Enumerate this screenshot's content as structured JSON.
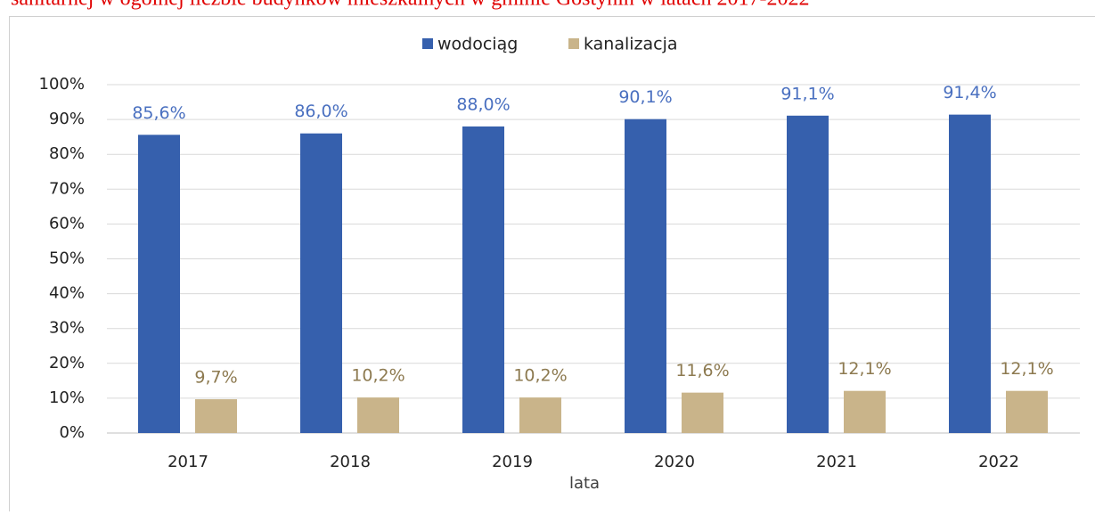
{
  "chart_data": {
    "type": "bar",
    "title": "sanitarnej w ogólnej liczbie budynków mieszkalnych w gminie Gostynin w latach 2017-2022",
    "xlabel": "lata",
    "categories": [
      "2017",
      "2018",
      "2019",
      "2020",
      "2021",
      "2022"
    ],
    "series": [
      {
        "name": "wodociąg",
        "color": "#3660ad",
        "values": [
          85.6,
          86.0,
          88.0,
          90.1,
          91.1,
          91.4
        ],
        "value_labels": [
          "85,6%",
          "86,0%",
          "88,0%",
          "90,1%",
          "91,1%",
          "91,4%"
        ]
      },
      {
        "name": "kanalizacja",
        "color": "#c9b48a",
        "values": [
          9.7,
          10.2,
          10.2,
          11.6,
          12.1,
          12.1
        ],
        "value_labels": [
          "9,7%",
          "10,2%",
          "10,2%",
          "11,6%",
          "12,1%",
          "12,1%"
        ]
      }
    ],
    "ylim": [
      0,
      100
    ],
    "yticks": [
      {
        "value": 0,
        "label": "0%"
      },
      {
        "value": 10,
        "label": "10%"
      },
      {
        "value": 20,
        "label": "20%"
      },
      {
        "value": 30,
        "label": "30%"
      },
      {
        "value": 40,
        "label": "40%"
      },
      {
        "value": 50,
        "label": "50%"
      },
      {
        "value": 60,
        "label": "60%"
      },
      {
        "value": 70,
        "label": "70%"
      },
      {
        "value": 80,
        "label": "80%"
      },
      {
        "value": 90,
        "label": "90%"
      },
      {
        "value": 100,
        "label": "100%"
      }
    ],
    "grid": true,
    "legend": "top"
  }
}
